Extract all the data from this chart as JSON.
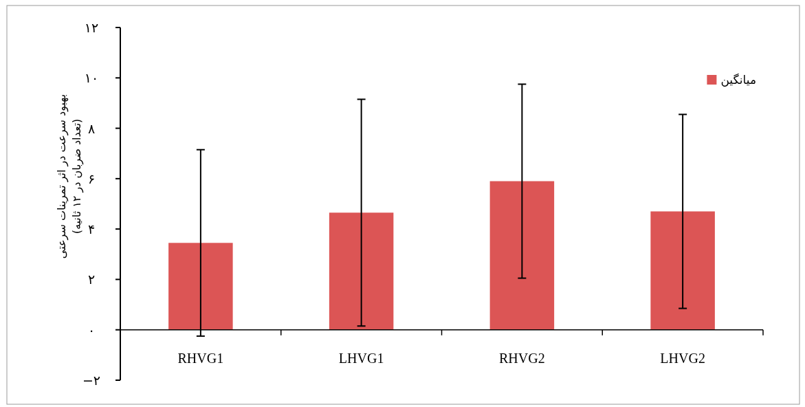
{
  "chart_data": {
    "type": "bar",
    "ylabel": "بهبود سرعت در اثر تمرینات سرعتی\n(تعداد ضربان در ۱۲ ثانیه)",
    "categories": [
      "RHVG1",
      "LHVG1",
      "RHVG2",
      "LHVG2"
    ],
    "series": [
      {
        "name": "میانگین",
        "color": "#dc5555",
        "values": [
          3.45,
          4.65,
          5.9,
          4.7
        ],
        "errors": [
          3.7,
          4.5,
          3.85,
          3.85
        ]
      }
    ],
    "ylim": [
      -2,
      12
    ],
    "yticks": [
      {
        "value": -2,
        "label": "−۲"
      },
      {
        "value": 0,
        "label": "۰"
      },
      {
        "value": 2,
        "label": "۲"
      },
      {
        "value": 4,
        "label": "۴"
      },
      {
        "value": 6,
        "label": "۶"
      },
      {
        "value": 8,
        "label": "۸"
      },
      {
        "value": 10,
        "label": "۱۰"
      },
      {
        "value": 12,
        "label": "۱۲"
      }
    ],
    "grid": false,
    "legend": "top right"
  }
}
